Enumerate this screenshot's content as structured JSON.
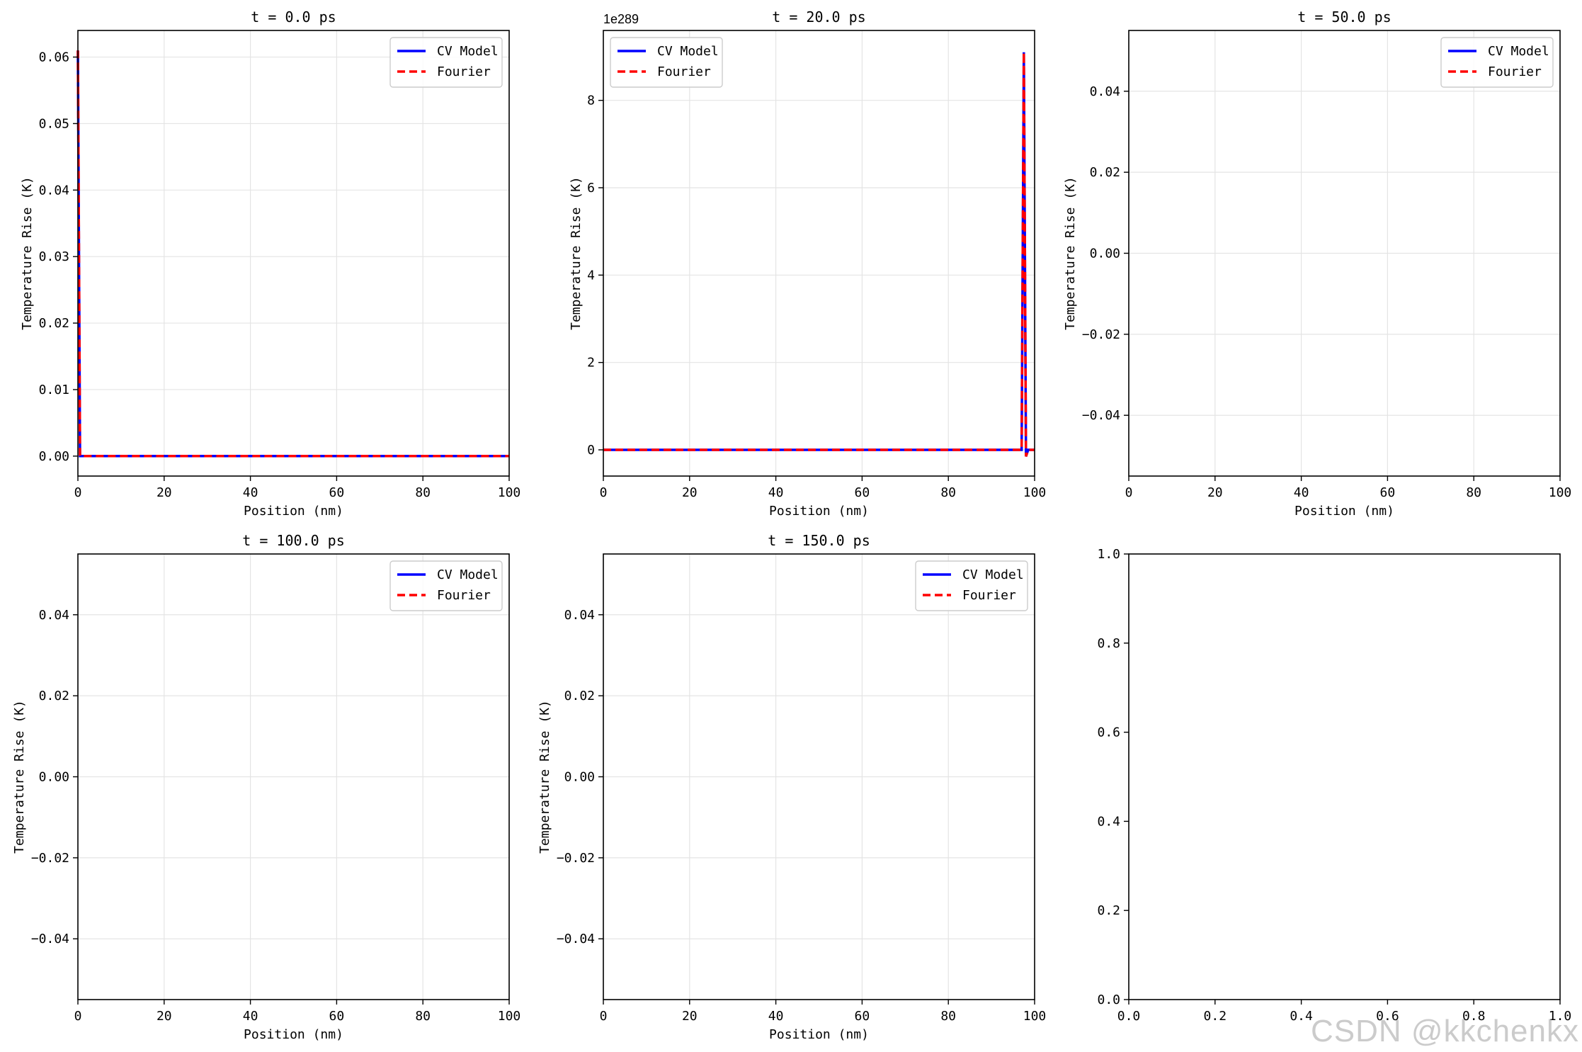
{
  "chart_data": [
    {
      "type": "line",
      "title": "t = 0.0 ps",
      "xlabel": "Position (nm)",
      "ylabel": "Temperature Rise (K)",
      "xlim": [
        0,
        100
      ],
      "ylim": [
        -0.003,
        0.064
      ],
      "xticks": [
        0,
        20,
        40,
        60,
        80,
        100
      ],
      "yticks": [
        0.0,
        0.01,
        0.02,
        0.03,
        0.04,
        0.05,
        0.06
      ],
      "ytick_labels": [
        "0.00",
        "0.01",
        "0.02",
        "0.03",
        "0.04",
        "0.05",
        "0.06"
      ],
      "grid": true,
      "legend": "top-right",
      "series": [
        {
          "name": "CV Model",
          "color": "#0000ff",
          "style": "solid",
          "x": [
            0,
            0.5,
            1,
            100
          ],
          "y": [
            0.061,
            0.0,
            0.0,
            0.0
          ]
        },
        {
          "name": "Fourier",
          "color": "#ff0000",
          "style": "dashed",
          "x": [
            0,
            0.5,
            1,
            100
          ],
          "y": [
            0.061,
            0.0,
            0.0,
            0.0
          ]
        }
      ]
    },
    {
      "type": "line",
      "title": "t = 20.0 ps",
      "xlabel": "Position (nm)",
      "ylabel": "Temperature Rise (K)",
      "offset_text": "1e289",
      "xlim": [
        0,
        100
      ],
      "ylim": [
        -0.6,
        9.6
      ],
      "xticks": [
        0,
        20,
        40,
        60,
        80,
        100
      ],
      "yticks": [
        0,
        2,
        4,
        6,
        8
      ],
      "ytick_labels": [
        "0",
        "2",
        "4",
        "6",
        "8"
      ],
      "grid": true,
      "legend": "top-left",
      "series": [
        {
          "name": "CV Model",
          "color": "#0000ff",
          "style": "solid",
          "x": [
            0,
            97,
            97.5,
            98,
            98.5,
            100
          ],
          "y": [
            0,
            0,
            9.1,
            -0.15,
            0,
            0
          ]
        },
        {
          "name": "Fourier",
          "color": "#ff0000",
          "style": "dashed",
          "x": [
            0,
            97,
            97.5,
            98,
            98.5,
            100
          ],
          "y": [
            0,
            0,
            9.1,
            -0.15,
            0,
            0
          ]
        }
      ]
    },
    {
      "type": "line",
      "title": "t = 50.0 ps",
      "xlabel": "Position (nm)",
      "ylabel": "Temperature Rise (K)",
      "xlim": [
        0,
        100
      ],
      "ylim": [
        -0.055,
        0.055
      ],
      "xticks": [
        0,
        20,
        40,
        60,
        80,
        100
      ],
      "yticks": [
        -0.04,
        -0.02,
        0.0,
        0.02,
        0.04
      ],
      "ytick_labels": [
        "−0.04",
        "−0.02",
        "0.00",
        "0.02",
        "0.04"
      ],
      "grid": true,
      "legend": "top-right",
      "series": [
        {
          "name": "CV Model",
          "color": "#0000ff",
          "style": "solid",
          "x": [],
          "y": []
        },
        {
          "name": "Fourier",
          "color": "#ff0000",
          "style": "dashed",
          "x": [],
          "y": []
        }
      ]
    },
    {
      "type": "line",
      "title": "t = 100.0 ps",
      "xlabel": "Position (nm)",
      "ylabel": "Temperature Rise (K)",
      "xlim": [
        0,
        100
      ],
      "ylim": [
        -0.055,
        0.055
      ],
      "xticks": [
        0,
        20,
        40,
        60,
        80,
        100
      ],
      "yticks": [
        -0.04,
        -0.02,
        0.0,
        0.02,
        0.04
      ],
      "ytick_labels": [
        "−0.04",
        "−0.02",
        "0.00",
        "0.02",
        "0.04"
      ],
      "grid": true,
      "legend": "top-right",
      "series": [
        {
          "name": "CV Model",
          "color": "#0000ff",
          "style": "solid",
          "x": [],
          "y": []
        },
        {
          "name": "Fourier",
          "color": "#ff0000",
          "style": "dashed",
          "x": [],
          "y": []
        }
      ]
    },
    {
      "type": "line",
      "title": "t = 150.0 ps",
      "xlabel": "Position (nm)",
      "ylabel": "Temperature Rise (K)",
      "xlim": [
        0,
        100
      ],
      "ylim": [
        -0.055,
        0.055
      ],
      "xticks": [
        0,
        20,
        40,
        60,
        80,
        100
      ],
      "yticks": [
        -0.04,
        -0.02,
        0.0,
        0.02,
        0.04
      ],
      "ytick_labels": [
        "−0.04",
        "−0.02",
        "0.00",
        "0.02",
        "0.04"
      ],
      "grid": true,
      "legend": "top-right",
      "series": [
        {
          "name": "CV Model",
          "color": "#0000ff",
          "style": "solid",
          "x": [],
          "y": []
        },
        {
          "name": "Fourier",
          "color": "#ff0000",
          "style": "dashed",
          "x": [],
          "y": []
        }
      ]
    },
    {
      "type": "line",
      "title": "",
      "xlabel": "",
      "ylabel": "",
      "xlim": [
        0,
        1
      ],
      "ylim": [
        0,
        1
      ],
      "xticks": [
        0.0,
        0.2,
        0.4,
        0.6,
        0.8,
        1.0
      ],
      "xtick_labels": [
        "0.0",
        "0.2",
        "0.4",
        "0.6",
        "0.8",
        "1.0"
      ],
      "yticks": [
        0.0,
        0.2,
        0.4,
        0.6,
        0.8,
        1.0
      ],
      "ytick_labels": [
        "0.0",
        "0.2",
        "0.4",
        "0.6",
        "0.8",
        "1.0"
      ],
      "grid": false,
      "legend": "none",
      "series": []
    }
  ],
  "watermark": "CSDN @kkchenkx"
}
